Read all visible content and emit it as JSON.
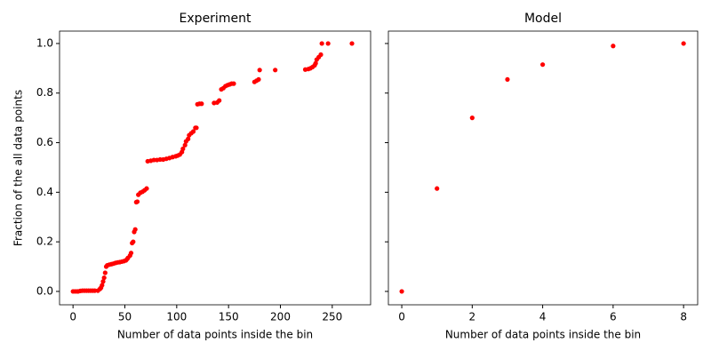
{
  "chart_data": [
    {
      "type": "scatter",
      "title": "Experiment",
      "xlabel": "Number of data points inside the bin",
      "ylabel": "Fraction of the all data points",
      "color": "#ff0000",
      "x": [
        0,
        2,
        4,
        5,
        7,
        9,
        11,
        13,
        15,
        17,
        19,
        21,
        24,
        26,
        27,
        28,
        29,
        30,
        31,
        32,
        33,
        35,
        37,
        39,
        41,
        43,
        45,
        47,
        49,
        51,
        52,
        53,
        55,
        56,
        57,
        58,
        59,
        60,
        61,
        62,
        63,
        65,
        67,
        69,
        71,
        72,
        75,
        78,
        81,
        84,
        87,
        90,
        93,
        96,
        99,
        101,
        103,
        105,
        106,
        108,
        109,
        111,
        112,
        114,
        116,
        118,
        119,
        120,
        122,
        124,
        136,
        139,
        141,
        143,
        145,
        147,
        149,
        151,
        153,
        155,
        175,
        177,
        179,
        180,
        195,
        224,
        227,
        229,
        231,
        233,
        234,
        235,
        237,
        239,
        240,
        246,
        269
      ],
      "values": [
        0,
        0,
        0,
        0,
        0.002,
        0.003,
        0.003,
        0.003,
        0.003,
        0.003,
        0.003,
        0.003,
        0.003,
        0.01,
        0.015,
        0.025,
        0.04,
        0.055,
        0.075,
        0.1,
        0.105,
        0.108,
        0.11,
        0.112,
        0.115,
        0.117,
        0.118,
        0.12,
        0.122,
        0.125,
        0.13,
        0.135,
        0.145,
        0.155,
        0.195,
        0.2,
        0.24,
        0.25,
        0.36,
        0.362,
        0.39,
        0.398,
        0.402,
        0.408,
        0.415,
        0.525,
        0.527,
        0.53,
        0.53,
        0.532,
        0.532,
        0.535,
        0.538,
        0.542,
        0.545,
        0.548,
        0.552,
        0.562,
        0.575,
        0.59,
        0.605,
        0.615,
        0.63,
        0.638,
        0.645,
        0.66,
        0.66,
        0.755,
        0.757,
        0.757,
        0.76,
        0.762,
        0.77,
        0.815,
        0.82,
        0.828,
        0.832,
        0.835,
        0.838,
        0.838,
        0.845,
        0.85,
        0.855,
        0.893,
        0.893,
        0.895,
        0.897,
        0.9,
        0.905,
        0.912,
        0.92,
        0.935,
        0.945,
        0.955,
        1.0,
        1.0,
        1.0
      ],
      "xlim": [
        -13,
        287
      ],
      "ylim": [
        -0.054,
        1.05
      ],
      "xticks": [
        0,
        50,
        100,
        150,
        200,
        250
      ],
      "yticks": [
        {
          "value": 0,
          "label": "0.0"
        },
        0.2,
        0.4,
        0.6,
        0.8,
        {
          "value": 1,
          "label": "1.0"
        }
      ]
    },
    {
      "type": "scatter",
      "title": "Model",
      "xlabel": "Number of data points inside the bin",
      "color": "#ff0000",
      "x": [
        0,
        1,
        2,
        3,
        4,
        6,
        8
      ],
      "values": [
        0,
        0.415,
        0.7,
        0.855,
        0.915,
        0.99,
        1.0
      ],
      "xlim": [
        -0.38,
        8.4
      ],
      "ylim": [
        -0.054,
        1.05
      ],
      "xticks": [
        0,
        2,
        4,
        6,
        8
      ],
      "yticks": [
        0,
        0.2,
        0.4,
        0.6,
        0.8,
        1
      ]
    }
  ]
}
